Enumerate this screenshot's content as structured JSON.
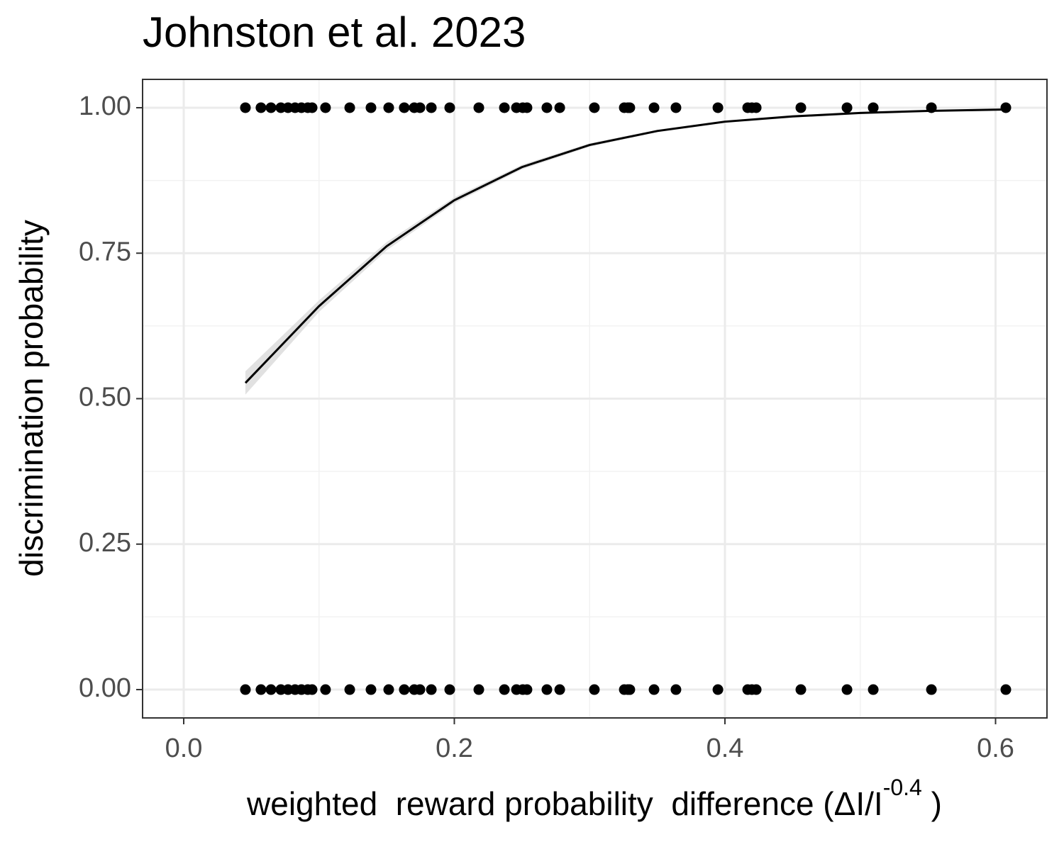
{
  "chart_data": {
    "type": "scatter",
    "title": "Johnston et al. 2023",
    "x_label": "weighted  reward probability  difference (ΔI/I",
    "x_label_superscript": "-0.4",
    "x_label_suffix": " )",
    "y_label": "discrimination probability",
    "xlim": [
      -0.0304,
      0.638
    ],
    "ylim": [
      -0.0487,
      1.0487
    ],
    "xticks": [
      {
        "value": 0,
        "label": "0.0"
      },
      0.2,
      0.4,
      0.6
    ],
    "yticks": [
      {
        "value": 0,
        "label": "0.00"
      },
      0.25,
      {
        "value": 0.5,
        "label": "0.50"
      },
      0.75,
      {
        "value": 1,
        "label": "1.00"
      }
    ],
    "xminor_ticks": [
      0.1,
      0.3,
      0.5
    ],
    "yminor_ticks": [
      0.125,
      0.375,
      0.625,
      0.875
    ],
    "grid": true,
    "points": {
      "color": "#000000",
      "x": [
        0.0456,
        0.0571,
        0.0645,
        0.0718,
        0.0771,
        0.0823,
        0.087,
        0.0917,
        0.0949,
        0.1048,
        0.1227,
        0.1384,
        0.1515,
        0.163,
        0.1704,
        0.1746,
        0.183,
        0.1966,
        0.2181,
        0.237,
        0.2459,
        0.2506,
        0.2537,
        0.2684,
        0.2779,
        0.3035,
        0.3256,
        0.3282,
        0.3297,
        0.3476,
        0.3638,
        0.3948,
        0.4168,
        0.4199,
        0.4231,
        0.4561,
        0.4902,
        0.5096,
        0.5526,
        0.6076,
        0.0456,
        0.0571,
        0.0645,
        0.0718,
        0.0771,
        0.0823,
        0.087,
        0.0917,
        0.0949,
        0.1048,
        0.1227,
        0.1384,
        0.1515,
        0.163,
        0.1704,
        0.1746,
        0.183,
        0.1966,
        0.2181,
        0.237,
        0.2459,
        0.2506,
        0.2537,
        0.2684,
        0.2779,
        0.3035,
        0.3256,
        0.3282,
        0.3297,
        0.3476,
        0.3638,
        0.3948,
        0.4168,
        0.4199,
        0.4231,
        0.4561,
        0.4902,
        0.5096,
        0.5526,
        0.6076
      ],
      "y": [
        1,
        1,
        1,
        1,
        1,
        1,
        1,
        1,
        1,
        1,
        1,
        1,
        1,
        1,
        1,
        1,
        1,
        1,
        1,
        1,
        1,
        1,
        1,
        1,
        1,
        1,
        1,
        1,
        1,
        1,
        1,
        1,
        1,
        1,
        1,
        1,
        1,
        1,
        1,
        1,
        0,
        0,
        0,
        0,
        0,
        0,
        0,
        0,
        0,
        0,
        0,
        0,
        0,
        0,
        0,
        0,
        0,
        0,
        0,
        0,
        0,
        0,
        0,
        0,
        0,
        0,
        0,
        0,
        0,
        0,
        0,
        0,
        0,
        0,
        0,
        0,
        0,
        0,
        0,
        0
      ]
    },
    "fit": {
      "color": "#000000",
      "band_color": "#d9d9d9",
      "x": [
        0.0456,
        0.1,
        0.15,
        0.2,
        0.25,
        0.3,
        0.35,
        0.4,
        0.45,
        0.5,
        0.55,
        0.6076
      ],
      "y": [
        0.527,
        0.659,
        0.762,
        0.841,
        0.898,
        0.936,
        0.96,
        0.976,
        0.985,
        0.991,
        0.9945,
        0.9969
      ],
      "lower": [
        0.507,
        0.649,
        0.755,
        0.836,
        0.894,
        0.933,
        0.958,
        0.974,
        0.983,
        0.989,
        0.993,
        0.996
      ],
      "upper": [
        0.547,
        0.669,
        0.769,
        0.846,
        0.902,
        0.939,
        0.962,
        0.978,
        0.987,
        0.993,
        0.996,
        0.998
      ]
    }
  }
}
